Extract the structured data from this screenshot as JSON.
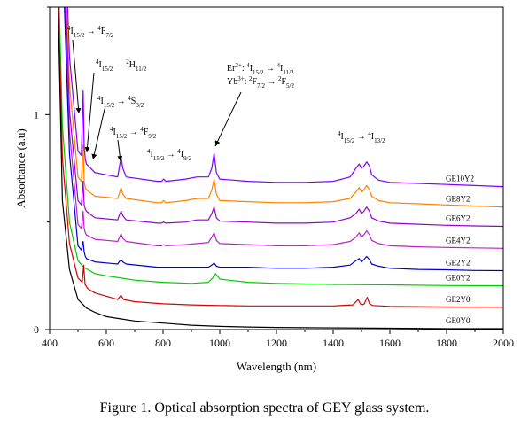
{
  "chart_data": {
    "type": "line",
    "xlabel": "Wavelength (nm)",
    "ylabel": "Absorbance (a.u)",
    "xlim": [
      400,
      2000
    ],
    "ylim": [
      0,
      1.5
    ],
    "x_ticks": [
      "400",
      "600",
      "800",
      "1000",
      "1200",
      "1400",
      "1600",
      "1800",
      "2000"
    ],
    "y_ticks": [
      "0",
      "1"
    ],
    "legend_position": "right",
    "series": [
      {
        "name": "GE10Y2",
        "color": "#8000ff",
        "offset": 0.65,
        "x": [
          445,
          470,
          500,
          512,
          518,
          522,
          526,
          530,
          560,
          640,
          645,
          652,
          658,
          670,
          780,
          795,
          802,
          810,
          880,
          920,
          960,
          972,
          980,
          988,
          1000,
          1100,
          1200,
          1300,
          1400,
          1460,
          1480,
          1492,
          1500,
          1508,
          1518,
          1528,
          1536,
          1560,
          1600,
          1700,
          1800,
          1900,
          2000
        ],
        "y": [
          1.5,
          0.62,
          0.18,
          0.16,
          0.46,
          0.2,
          0.14,
          0.12,
          0.08,
          0.06,
          0.1,
          0.15,
          0.1,
          0.06,
          0.04,
          0.04,
          0.05,
          0.04,
          0.05,
          0.06,
          0.06,
          0.1,
          0.17,
          0.08,
          0.05,
          0.04,
          0.035,
          0.035,
          0.04,
          0.06,
          0.1,
          0.12,
          0.1,
          0.11,
          0.13,
          0.11,
          0.07,
          0.045,
          0.035,
          0.03,
          0.025,
          0.02,
          0.015
        ]
      },
      {
        "name": "GE8Y2",
        "color": "#ff8000",
        "offset": 0.56,
        "x": [
          445,
          470,
          500,
          512,
          518,
          522,
          526,
          530,
          560,
          640,
          645,
          652,
          658,
          670,
          780,
          795,
          802,
          810,
          880,
          920,
          960,
          972,
          980,
          988,
          1000,
          1100,
          1200,
          1300,
          1400,
          1460,
          1480,
          1492,
          1500,
          1508,
          1518,
          1528,
          1536,
          1560,
          1600,
          1700,
          1800,
          1900,
          2000
        ],
        "y": [
          1.5,
          0.58,
          0.15,
          0.13,
          0.3,
          0.13,
          0.1,
          0.09,
          0.06,
          0.05,
          0.07,
          0.1,
          0.07,
          0.05,
          0.03,
          0.03,
          0.04,
          0.03,
          0.04,
          0.05,
          0.05,
          0.09,
          0.14,
          0.07,
          0.04,
          0.035,
          0.03,
          0.03,
          0.035,
          0.05,
          0.08,
          0.1,
          0.08,
          0.09,
          0.11,
          0.09,
          0.06,
          0.04,
          0.03,
          0.025,
          0.02,
          0.015,
          0.01
        ]
      },
      {
        "name": "GE6Y2",
        "color": "#9900cc",
        "offset": 0.47,
        "x": [
          445,
          470,
          500,
          512,
          518,
          522,
          526,
          530,
          560,
          640,
          645,
          652,
          658,
          670,
          780,
          795,
          802,
          810,
          880,
          920,
          960,
          972,
          980,
          988,
          1000,
          1100,
          1200,
          1300,
          1400,
          1460,
          1480,
          1492,
          1500,
          1508,
          1518,
          1528,
          1536,
          1560,
          1600,
          1700,
          1800,
          1900,
          2000
        ],
        "y": [
          1.5,
          0.55,
          0.13,
          0.11,
          0.22,
          0.11,
          0.09,
          0.08,
          0.05,
          0.04,
          0.06,
          0.08,
          0.06,
          0.04,
          0.025,
          0.025,
          0.03,
          0.025,
          0.03,
          0.04,
          0.04,
          0.07,
          0.1,
          0.05,
          0.035,
          0.03,
          0.025,
          0.025,
          0.03,
          0.05,
          0.07,
          0.09,
          0.07,
          0.08,
          0.1,
          0.08,
          0.05,
          0.035,
          0.025,
          0.02,
          0.015,
          0.012,
          0.01
        ]
      },
      {
        "name": "GE4Y2",
        "color": "#bb22cc",
        "offset": 0.37,
        "x": [
          445,
          470,
          500,
          512,
          518,
          522,
          526,
          530,
          560,
          640,
          645,
          652,
          658,
          670,
          780,
          795,
          802,
          810,
          880,
          920,
          960,
          972,
          980,
          988,
          1000,
          1100,
          1200,
          1300,
          1400,
          1460,
          1480,
          1492,
          1500,
          1508,
          1518,
          1528,
          1536,
          1560,
          1600,
          1700,
          1800,
          1900,
          2000
        ],
        "y": [
          1.5,
          0.55,
          0.12,
          0.1,
          0.18,
          0.1,
          0.08,
          0.07,
          0.05,
          0.04,
          0.055,
          0.075,
          0.055,
          0.04,
          0.02,
          0.02,
          0.025,
          0.02,
          0.025,
          0.03,
          0.035,
          0.06,
          0.08,
          0.045,
          0.03,
          0.025,
          0.02,
          0.02,
          0.025,
          0.04,
          0.06,
          0.08,
          0.06,
          0.07,
          0.09,
          0.07,
          0.045,
          0.03,
          0.02,
          0.015,
          0.012,
          0.01,
          0.008
        ]
      },
      {
        "name": "GE2Y2",
        "color": "#0000cc",
        "offset": 0.27,
        "x": [
          445,
          470,
          500,
          512,
          518,
          522,
          526,
          530,
          560,
          640,
          645,
          652,
          658,
          670,
          780,
          795,
          802,
          810,
          880,
          920,
          960,
          972,
          980,
          988,
          1000,
          1100,
          1200,
          1300,
          1400,
          1460,
          1480,
          1492,
          1500,
          1508,
          1518,
          1528,
          1536,
          1560,
          1600,
          1700,
          1800,
          1900,
          2000
        ],
        "y": [
          1.5,
          0.55,
          0.12,
          0.1,
          0.14,
          0.09,
          0.07,
          0.06,
          0.045,
          0.035,
          0.045,
          0.055,
          0.045,
          0.035,
          0.02,
          0.02,
          0.02,
          0.02,
          0.02,
          0.02,
          0.02,
          0.03,
          0.04,
          0.025,
          0.02,
          0.02,
          0.015,
          0.015,
          0.02,
          0.03,
          0.05,
          0.06,
          0.045,
          0.055,
          0.07,
          0.055,
          0.035,
          0.025,
          0.015,
          0.01,
          0.008,
          0.005,
          0.004
        ]
      },
      {
        "name": "GE0Y2",
        "color": "#00cc00",
        "offset": 0.2,
        "x": [
          430,
          445,
          470,
          500,
          520,
          560,
          600,
          700,
          800,
          900,
          960,
          975,
          985,
          1000,
          1100,
          1200,
          1400,
          1600,
          1800,
          2000
        ],
        "y": [
          1.5,
          0.75,
          0.3,
          0.12,
          0.09,
          0.06,
          0.05,
          0.03,
          0.02,
          0.015,
          0.02,
          0.04,
          0.06,
          0.035,
          0.02,
          0.015,
          0.01,
          0.008,
          0.005,
          0.004
        ]
      },
      {
        "name": "GE2Y0",
        "color": "#dd0000",
        "offset": 0.1,
        "x": [
          430,
          445,
          470,
          500,
          515,
          520,
          525,
          535,
          560,
          640,
          652,
          660,
          700,
          800,
          900,
          1000,
          1100,
          1200,
          1400,
          1470,
          1488,
          1496,
          1502,
          1510,
          1520,
          1528,
          1540,
          1600,
          1800,
          2000
        ],
        "y": [
          1.5,
          0.7,
          0.3,
          0.14,
          0.12,
          0.2,
          0.11,
          0.09,
          0.07,
          0.04,
          0.06,
          0.04,
          0.03,
          0.02,
          0.015,
          0.012,
          0.01,
          0.01,
          0.01,
          0.015,
          0.04,
          0.02,
          0.015,
          0.02,
          0.05,
          0.02,
          0.012,
          0.008,
          0.005,
          0.004
        ]
      },
      {
        "name": "GE0Y0",
        "color": "#000000",
        "offset": 0.0,
        "x": [
          430,
          445,
          470,
          500,
          530,
          560,
          600,
          650,
          700,
          800,
          900,
          1000,
          1100,
          1200,
          1400,
          1600,
          1800,
          2000
        ],
        "y": [
          1.5,
          0.6,
          0.28,
          0.14,
          0.1,
          0.08,
          0.06,
          0.05,
          0.04,
          0.03,
          0.02,
          0.015,
          0.012,
          0.01,
          0.008,
          0.006,
          0.004,
          0.004
        ]
      }
    ],
    "annotations": [
      {
        "key": "a1",
        "parts": [
          [
            "sup",
            "4"
          ],
          [
            "n",
            "I"
          ],
          [
            "sub",
            "15/2"
          ],
          [
            "n",
            " → "
          ],
          [
            "sup",
            "4"
          ],
          [
            "n",
            "F"
          ],
          [
            "sub",
            "7/2"
          ]
        ]
      },
      {
        "key": "a2",
        "parts": [
          [
            "sup",
            "4"
          ],
          [
            "n",
            "I"
          ],
          [
            "sub",
            "15/2"
          ],
          [
            "n",
            " → "
          ],
          [
            "sup",
            "2"
          ],
          [
            "n",
            "H"
          ],
          [
            "sub",
            "11/2"
          ]
        ]
      },
      {
        "key": "a3",
        "parts": [
          [
            "sup",
            "4"
          ],
          [
            "n",
            "I"
          ],
          [
            "sub",
            "15/2"
          ],
          [
            "n",
            " → "
          ],
          [
            "sup",
            "4"
          ],
          [
            "n",
            "S"
          ],
          [
            "sub",
            "3/2"
          ]
        ]
      },
      {
        "key": "a4",
        "parts": [
          [
            "sup",
            "4"
          ],
          [
            "n",
            "I"
          ],
          [
            "sub",
            "15/2"
          ],
          [
            "n",
            " → "
          ],
          [
            "sup",
            "4"
          ],
          [
            "n",
            "F"
          ],
          [
            "sub",
            "9/2"
          ]
        ]
      },
      {
        "key": "a5",
        "parts": [
          [
            "sup",
            "4"
          ],
          [
            "n",
            "I"
          ],
          [
            "sub",
            "15/2"
          ],
          [
            "n",
            " → "
          ],
          [
            "sup",
            "4"
          ],
          [
            "n",
            "I"
          ],
          [
            "sub",
            "9/2"
          ]
        ]
      },
      {
        "key": "a6",
        "parts": [
          [
            "n",
            "Er"
          ],
          [
            "sup",
            "3+"
          ],
          [
            "n",
            ": "
          ],
          [
            "sup",
            "4"
          ],
          [
            "n",
            "I"
          ],
          [
            "sub",
            "15/2"
          ],
          [
            "n",
            " → "
          ],
          [
            "sup",
            "4"
          ],
          [
            "n",
            "I"
          ],
          [
            "sub",
            "11/2"
          ]
        ]
      },
      {
        "key": "a7",
        "parts": [
          [
            "n",
            "Yb"
          ],
          [
            "sup",
            "3+"
          ],
          [
            "n",
            ": "
          ],
          [
            "sup",
            "2"
          ],
          [
            "n",
            "F"
          ],
          [
            "sub",
            "7/2"
          ],
          [
            "n",
            " → "
          ],
          [
            "sup",
            "2"
          ],
          [
            "n",
            "F"
          ],
          [
            "sub",
            "5/2"
          ]
        ]
      },
      {
        "key": "a8",
        "parts": [
          [
            "sup",
            "4"
          ],
          [
            "n",
            "I"
          ],
          [
            "sub",
            "15/2"
          ],
          [
            "n",
            " → "
          ],
          [
            "sup",
            "4"
          ],
          [
            "n",
            "I"
          ],
          [
            "sub",
            "13/2"
          ]
        ]
      }
    ]
  },
  "caption": "Figure 1. Optical absorption spectra of GEY glass system."
}
